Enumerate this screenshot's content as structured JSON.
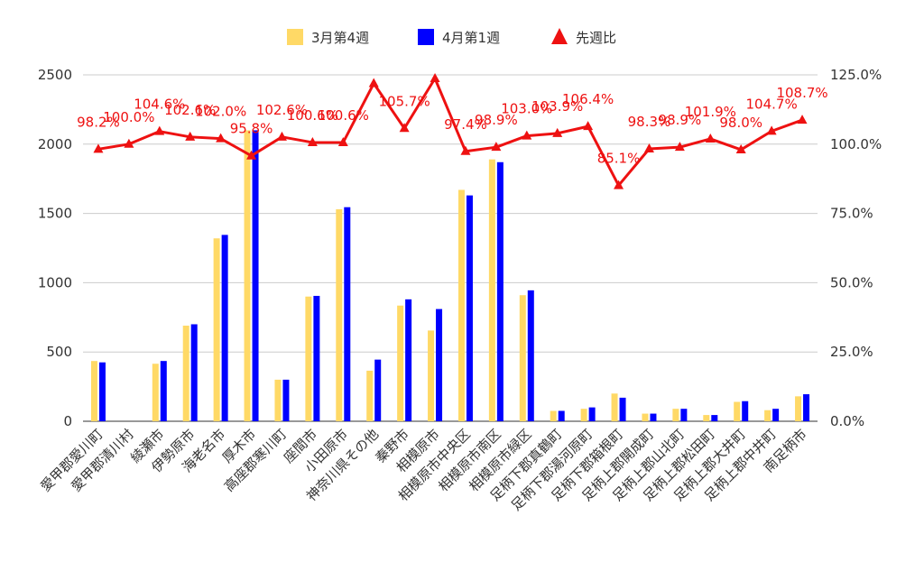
{
  "chart_data": {
    "type": "bar",
    "categories": [
      "愛甲郡愛川町",
      "愛甲郡清川村",
      "綾瀬市",
      "伊勢原市",
      "海老名市",
      "厚木市",
      "高座郡寒川町",
      "座間市",
      "小田原市",
      "神奈川県その他",
      "秦野市",
      "相模原市",
      "相模原市中央区",
      "相模原市南区",
      "相模原市緑区",
      "足柄下郡真鶴町",
      "足柄下郡湯河原町",
      "足柄下郡箱根町",
      "足柄上郡開成町",
      "足柄上郡山北町",
      "足柄上郡松田町",
      "足柄上郡大井町",
      "足柄上郡中井町",
      "南足柄市"
    ],
    "series": [
      {
        "name": "3月第4週",
        "type": "bar",
        "axis": "left",
        "color": "#FFD966",
        "values": [
          435,
          0,
          415,
          690,
          1320,
          2100,
          300,
          900,
          1530,
          365,
          835,
          655,
          1670,
          1890,
          910,
          75,
          90,
          200,
          55,
          90,
          45,
          140,
          80,
          180
        ]
      },
      {
        "name": "4月第1週",
        "type": "bar",
        "axis": "left",
        "color": "#0000FF",
        "values": [
          425,
          0,
          435,
          700,
          1345,
          2100,
          300,
          905,
          1545,
          445,
          880,
          810,
          1630,
          1870,
          945,
          75,
          100,
          170,
          55,
          90,
          45,
          145,
          90,
          195
        ]
      },
      {
        "name": "先週比",
        "type": "line",
        "axis": "right",
        "color": "#EE1111",
        "values": [
          98.2,
          100.0,
          104.6,
          102.6,
          102.0,
          95.8,
          102.6,
          100.6,
          100.6,
          121.9,
          105.7,
          123.7,
          97.4,
          98.9,
          103.0,
          103.9,
          106.4,
          85.1,
          98.3,
          98.9,
          101.9,
          98.0,
          104.7,
          108.7
        ],
        "labels": [
          "98.2%",
          "100.0%",
          "104.6%",
          "102.6%",
          "102.0%",
          "95.8%",
          "102.6%",
          "100.6%",
          "100.6%",
          "",
          "105.7%",
          "",
          "97.4%",
          "98.9%",
          "103.0%",
          "103.9%",
          "106.4%",
          "85.1%",
          "98.3%",
          "98.9%",
          "101.9%",
          "98.0%",
          "104.7%",
          "108.7%"
        ]
      }
    ],
    "y_left": {
      "min": 0,
      "max": 2500,
      "ticks": [
        "0",
        "500",
        "1000",
        "1500",
        "2000",
        "2500"
      ]
    },
    "y_right": {
      "min": 0,
      "max": 125,
      "ticks": [
        "0.0%",
        "25.0%",
        "50.0%",
        "75.0%",
        "100.0%",
        "125.0%"
      ]
    },
    "legend_position": "top",
    "grid": true,
    "title": "",
    "xlabel": "",
    "ylabel": ""
  }
}
